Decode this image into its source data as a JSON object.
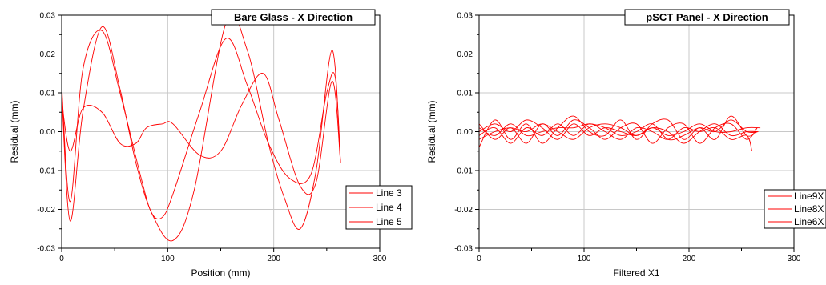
{
  "chart_data": [
    {
      "type": "line",
      "title": "Bare Glass - X Direction",
      "xlabel": "Position (mm)",
      "ylabel": "Residual (mm)",
      "xlim": [
        0,
        300
      ],
      "ylim": [
        -0.03,
        0.03
      ],
      "xticks": [
        0,
        100,
        200,
        300
      ],
      "xtick_labels": [
        "0",
        "100",
        "200",
        "300"
      ],
      "yticks": [
        -0.03,
        -0.02,
        -0.01,
        0.0,
        0.01,
        0.02,
        0.03
      ],
      "ytick_labels": [
        "-0.03",
        "-0.02",
        "-0.01",
        "0.00",
        "0.01",
        "0.02",
        "0.03"
      ],
      "grid": true,
      "legend": "bottom-right",
      "series": [
        {
          "name": "Line 3",
          "color": "#ff0000",
          "x": [
            0,
            8,
            20,
            38,
            55,
            75,
            85,
            95,
            105,
            130,
            155,
            175,
            195,
            215,
            235,
            250,
            258,
            263
          ],
          "y": [
            0.012,
            -0.018,
            0.016,
            0.026,
            0.01,
            -0.012,
            -0.021,
            -0.022,
            -0.016,
            0.005,
            0.024,
            0.012,
            -0.003,
            -0.012,
            -0.011,
            0.01,
            0.014,
            -0.008
          ]
        },
        {
          "name": "Line 4",
          "color": "#ff0000",
          "x": [
            0,
            8,
            20,
            38,
            55,
            70,
            85,
            105,
            125,
            155,
            175,
            195,
            210,
            225,
            240,
            255,
            263
          ],
          "y": [
            0.01,
            -0.023,
            0.005,
            0.027,
            0.011,
            -0.008,
            -0.021,
            -0.028,
            -0.015,
            0.028,
            0.021,
            -0.003,
            -0.017,
            -0.025,
            -0.01,
            0.021,
            -0.008
          ]
        },
        {
          "name": "Line 5",
          "color": "#ff0000",
          "x": [
            0,
            8,
            20,
            38,
            55,
            70,
            80,
            95,
            105,
            130,
            150,
            170,
            190,
            205,
            225,
            240,
            255,
            263
          ],
          "y": [
            0.008,
            -0.005,
            0.006,
            0.005,
            -0.003,
            -0.003,
            0.001,
            0.002,
            0.002,
            -0.006,
            -0.005,
            0.007,
            0.015,
            0.003,
            -0.014,
            -0.013,
            0.013,
            -0.008
          ]
        }
      ]
    },
    {
      "type": "line",
      "title": "pSCT Panel - X Direction",
      "xlabel": "Filtered X1",
      "ylabel": "Residual (mm)",
      "xlim": [
        0,
        300
      ],
      "ylim": [
        -0.03,
        0.03
      ],
      "xticks": [
        0,
        100,
        200,
        300
      ],
      "xtick_labels": [
        "0",
        "100",
        "200",
        "300"
      ],
      "yticks": [
        -0.03,
        -0.02,
        -0.01,
        0.0,
        0.01,
        0.02,
        0.03
      ],
      "ytick_labels": [
        "-0.03",
        "-0.02",
        "-0.01",
        "0.00",
        "0.01",
        "0.02",
        "0.03"
      ],
      "grid": true,
      "legend": "bottom-right",
      "series": [
        {
          "name": "Line9X",
          "color": "#ff0000",
          "x": [
            0,
            15,
            30,
            45,
            60,
            75,
            90,
            105,
            120,
            135,
            150,
            165,
            180,
            195,
            210,
            225,
            240,
            255,
            265
          ],
          "y": [
            -0.004,
            0.003,
            -0.002,
            0.002,
            -0.003,
            0.001,
            0.004,
            0.0,
            -0.001,
            0.003,
            -0.002,
            0.002,
            0.003,
            -0.002,
            0.001,
            -0.002,
            0.004,
            -0.001,
            0.0
          ]
        },
        {
          "name": "Line8X",
          "color": "#ff0000",
          "x": [
            0,
            15,
            30,
            45,
            60,
            75,
            90,
            105,
            120,
            135,
            150,
            165,
            180,
            195,
            210,
            225,
            240,
            255,
            265
          ],
          "y": [
            0.002,
            -0.002,
            0.001,
            -0.003,
            0.002,
            -0.001,
            0.003,
            0.001,
            -0.002,
            0.001,
            0.002,
            -0.003,
            0.001,
            0.002,
            -0.003,
            0.001,
            0.002,
            -0.002,
            0.001
          ]
        },
        {
          "name": "Line6X",
          "color": "#ff0000",
          "x": [
            0,
            15,
            30,
            45,
            60,
            75,
            90,
            105,
            120,
            135,
            150,
            165,
            180,
            195,
            210,
            225,
            240,
            255,
            260
          ],
          "y": [
            -0.001,
            0.001,
            -0.003,
            0.001,
            -0.001,
            0.002,
            -0.001,
            0.002,
            0.0,
            -0.002,
            0.001,
            0.0,
            -0.002,
            0.001,
            0.0,
            0.001,
            -0.002,
            -0.001,
            -0.005
          ]
        },
        {
          "color": "#ff0000",
          "x": [
            0,
            15,
            30,
            45,
            60,
            75,
            90,
            105,
            120,
            135,
            150,
            165,
            180,
            195,
            210,
            225,
            240,
            255,
            268
          ],
          "y": [
            0.0,
            0.002,
            0.0,
            0.003,
            0.001,
            -0.002,
            0.002,
            -0.001,
            0.001,
            0.0,
            -0.001,
            0.001,
            -0.001,
            0.0,
            0.002,
            0.0,
            0.0,
            0.001,
            0.001
          ]
        },
        {
          "color": "#ff0000",
          "x": [
            0,
            15,
            30,
            45,
            60,
            75,
            90,
            105,
            120,
            135,
            150,
            165,
            180,
            195,
            210,
            225,
            240,
            255,
            266
          ],
          "y": [
            0.001,
            -0.001,
            0.002,
            -0.001,
            0.0,
            0.001,
            0.001,
            0.002,
            0.001,
            -0.001,
            0.0,
            0.002,
            -0.002,
            -0.001,
            0.001,
            0.0,
            0.003,
            0.0,
            0.0
          ]
        },
        {
          "color": "#ff0000",
          "x": [
            0,
            15,
            30,
            45,
            60,
            75,
            90,
            105,
            120,
            135,
            150,
            165,
            180,
            195,
            210,
            225,
            240,
            255,
            265
          ],
          "y": [
            -0.002,
            0.0,
            0.001,
            0.0,
            0.002,
            0.0,
            -0.002,
            0.001,
            0.002,
            0.001,
            -0.001,
            0.001,
            0.0,
            -0.003,
            0.0,
            0.002,
            -0.001,
            0.0,
            0.0
          ]
        }
      ]
    }
  ]
}
